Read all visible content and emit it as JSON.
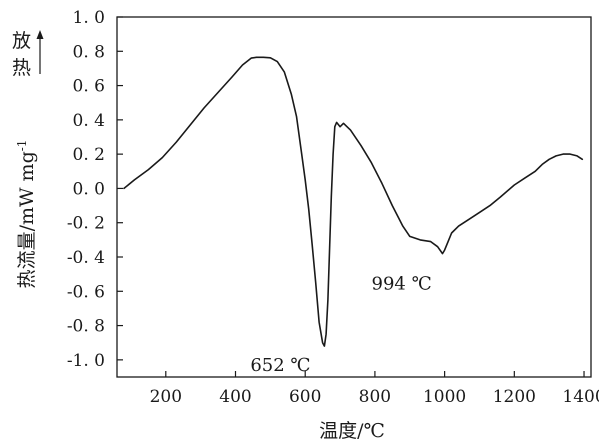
{
  "chart_data": {
    "type": "line",
    "xlabel": "温度/℃",
    "ylabel": "热流量/mW  mg",
    "ylabel_superscript": "-1",
    "exo_label": [
      "放",
      "热"
    ],
    "xlim": [
      60,
      1420
    ],
    "ylim": [
      -1.1,
      1.0
    ],
    "x_ticks": [
      200,
      400,
      600,
      800,
      1000,
      1200,
      1400
    ],
    "x_tick_labels": [
      "200",
      "400",
      "600",
      "800",
      "1000",
      "1200",
      "1400"
    ],
    "y_ticks": [
      1.0,
      0.8,
      0.6,
      0.4,
      0.2,
      0.0,
      -0.2,
      -0.4,
      -0.6,
      -0.8,
      -1.0
    ],
    "y_tick_labels": [
      "1. 0",
      "0. 8",
      "0. 6",
      "0. 4",
      "0. 2",
      "0. 0",
      "-0. 2",
      "-0. 4",
      "-0. 6",
      "-0. 8",
      "-1. 0"
    ],
    "grid": false,
    "series": [
      {
        "x": [
          80,
          110,
          150,
          190,
          230,
          270,
          310,
          350,
          390,
          420,
          445,
          460,
          480,
          500,
          520,
          540,
          560,
          575,
          590,
          600,
          610,
          620,
          630,
          640,
          650,
          655,
          660,
          665,
          670,
          675,
          680,
          685,
          690,
          700,
          710,
          730,
          760,
          790,
          820,
          850,
          870,
          880,
          900,
          930,
          960,
          980,
          994,
          1000,
          1010,
          1020,
          1040,
          1070,
          1100,
          1130,
          1160,
          1200,
          1230,
          1260,
          1280,
          1300,
          1320,
          1340,
          1360,
          1380,
          1395
        ],
        "y": [
          0.0,
          0.05,
          0.11,
          0.18,
          0.27,
          0.37,
          0.47,
          0.56,
          0.65,
          0.72,
          0.76,
          0.765,
          0.765,
          0.762,
          0.74,
          0.68,
          0.55,
          0.42,
          0.2,
          0.05,
          -0.12,
          -0.33,
          -0.55,
          -0.78,
          -0.9,
          -0.92,
          -0.85,
          -0.65,
          -0.35,
          -0.05,
          0.2,
          0.36,
          0.385,
          0.36,
          0.38,
          0.34,
          0.25,
          0.15,
          0.03,
          -0.1,
          -0.18,
          -0.22,
          -0.28,
          -0.3,
          -0.31,
          -0.34,
          -0.38,
          -0.36,
          -0.31,
          -0.26,
          -0.22,
          -0.18,
          -0.14,
          -0.1,
          -0.05,
          0.02,
          0.06,
          0.1,
          0.14,
          0.17,
          0.19,
          0.2,
          0.2,
          0.19,
          0.17
        ]
      }
    ],
    "annotations": [
      {
        "text": "652 ℃",
        "x": 652,
        "y": -0.92
      },
      {
        "text": "994 ℃",
        "x": 994,
        "y": -0.38
      }
    ]
  }
}
